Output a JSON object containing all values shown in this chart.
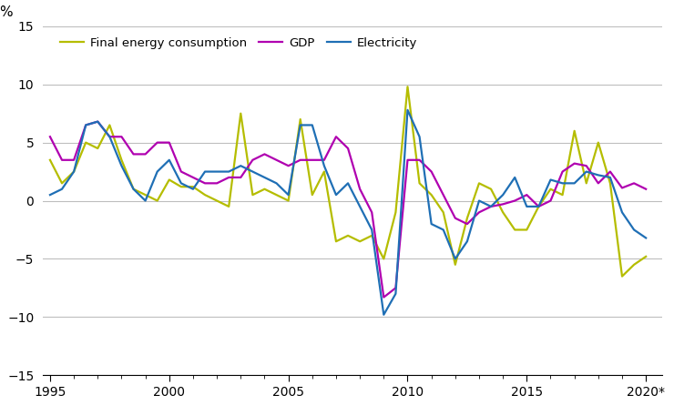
{
  "years": [
    1995,
    1995.5,
    1996,
    1996.5,
    1997,
    1997.5,
    1998,
    1998.5,
    1999,
    1999.5,
    2000,
    2000.5,
    2001,
    2001.5,
    2002,
    2002.5,
    2003,
    2003.5,
    2004,
    2004.5,
    2005,
    2005.5,
    2006,
    2006.5,
    2007,
    2007.5,
    2008,
    2008.5,
    2009,
    2009.5,
    2010,
    2010.5,
    2011,
    2011.5,
    2012,
    2012.5,
    2013,
    2013.5,
    2014,
    2014.5,
    2015,
    2015.5,
    2016,
    2016.5,
    2017,
    2017.5,
    2018,
    2018.5,
    2019,
    2019.5,
    2020
  ],
  "final_energy": [
    3.5,
    1.5,
    2.5,
    5.0,
    4.5,
    6.5,
    3.5,
    1.0,
    0.5,
    0.0,
    1.8,
    1.2,
    1.2,
    0.5,
    0.0,
    -0.5,
    7.5,
    0.5,
    1.0,
    0.5,
    0.0,
    7.0,
    0.5,
    2.5,
    -3.5,
    -3.0,
    -3.5,
    -3.0,
    -5.0,
    -1.0,
    9.8,
    1.5,
    0.5,
    -1.0,
    -5.5,
    -1.5,
    1.5,
    1.0,
    -1.0,
    -2.5,
    -2.5,
    -0.5,
    1.0,
    0.5,
    6.0,
    1.5,
    5.0,
    1.5,
    -6.5,
    -5.5,
    -4.8
  ],
  "gdp": [
    5.5,
    3.5,
    3.5,
    6.5,
    6.8,
    5.5,
    5.5,
    4.0,
    4.0,
    5.0,
    5.0,
    2.5,
    2.0,
    1.5,
    1.5,
    2.0,
    2.0,
    3.5,
    4.0,
    3.5,
    3.0,
    3.5,
    3.5,
    3.5,
    5.5,
    4.5,
    1.0,
    -1.0,
    -8.3,
    -7.5,
    3.5,
    3.5,
    2.5,
    0.5,
    -1.5,
    -2.0,
    -1.0,
    -0.5,
    -0.3,
    0.0,
    0.5,
    -0.5,
    0.0,
    2.5,
    3.2,
    3.0,
    1.5,
    2.5,
    1.1,
    1.5,
    1.0
  ],
  "electricity": [
    0.5,
    1.0,
    2.5,
    6.5,
    6.8,
    5.5,
    3.0,
    1.0,
    0.0,
    2.5,
    3.5,
    1.5,
    1.0,
    2.5,
    2.5,
    2.5,
    3.0,
    2.5,
    2.0,
    1.5,
    0.5,
    6.5,
    6.5,
    3.0,
    0.5,
    1.5,
    -0.5,
    -2.5,
    -9.8,
    -8.0,
    7.8,
    5.5,
    -2.0,
    -2.5,
    -5.0,
    -3.5,
    0.0,
    -0.5,
    0.5,
    2.0,
    -0.5,
    -0.5,
    1.8,
    1.5,
    1.5,
    2.5,
    2.2,
    2.0,
    -1.0,
    -2.5,
    -3.2
  ],
  "color_energy": "#b5bd00",
  "color_gdp": "#b000b0",
  "color_electricity": "#1f6fb5",
  "ylabel": "%",
  "ylim": [
    -15,
    15
  ],
  "yticks": [
    -15,
    -10,
    -5,
    0,
    5,
    10,
    15
  ],
  "xlim_start": 1994.7,
  "xlim_end": 2020.7,
  "xticks": [
    1995,
    2000,
    2005,
    2010,
    2015,
    2020
  ],
  "legend_final_energy": "Final energy consumption",
  "legend_gdp": "GDP",
  "legend_electricity": "Electricity",
  "linewidth": 1.6,
  "background_color": "#ffffff",
  "grid_color": "#bebebe"
}
